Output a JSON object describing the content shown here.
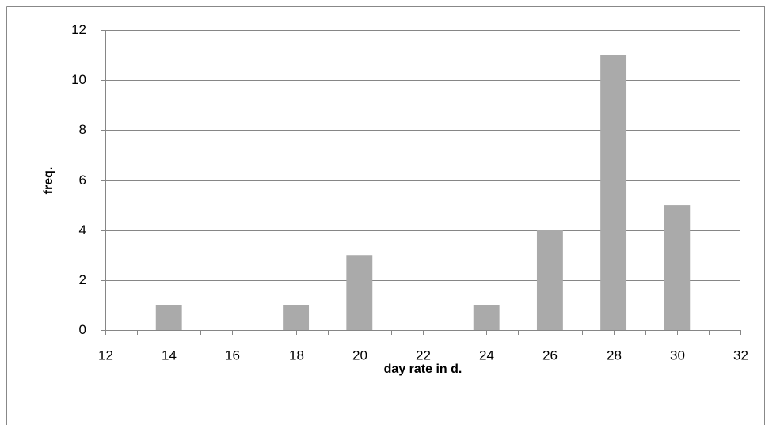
{
  "chart_data": {
    "type": "bar",
    "x_label": "day rate in d.",
    "y_label": "freq.",
    "x": [
      14,
      18,
      20,
      24,
      26,
      28,
      30
    ],
    "values": [
      1,
      1,
      3,
      1,
      4,
      11,
      5
    ],
    "color": "#aaaaaa",
    "xlim": [
      12,
      32
    ],
    "xticks": [
      12,
      14,
      16,
      18,
      20,
      22,
      24,
      26,
      28,
      30,
      32
    ],
    "x_minor_ticks": [
      13,
      15,
      17,
      19,
      21,
      23,
      25,
      27,
      29,
      31
    ],
    "ylim": [
      0,
      12
    ],
    "yticks": [
      0,
      2,
      4,
      6,
      8,
      10,
      12
    ],
    "grid": true
  }
}
